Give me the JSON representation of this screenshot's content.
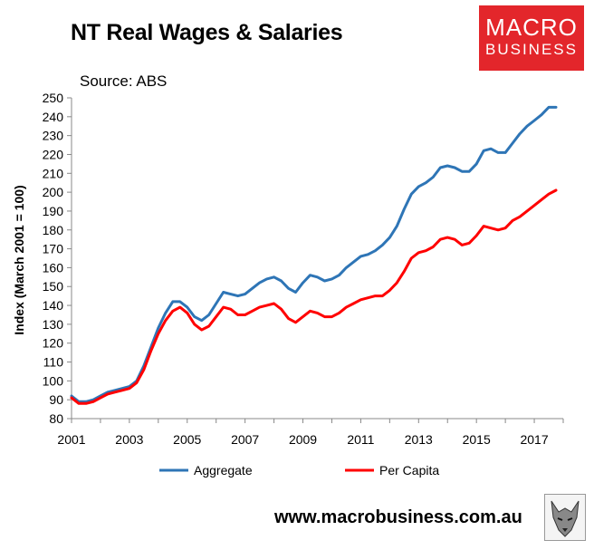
{
  "header": {
    "title": "NT Real Wages & Salaries",
    "source": "Source: ABS"
  },
  "logo": {
    "line1": "MACRO",
    "line2": "BUSINESS",
    "color": "#e3262b"
  },
  "footer": {
    "url": "www.macrobusiness.com.au"
  },
  "chart_data": {
    "type": "line",
    "title": "NT Real Wages & Salaries",
    "xlabel": "",
    "ylabel": "Index (March 2001 = 100)",
    "xlim": [
      2001,
      2018
    ],
    "ylim": [
      80,
      250
    ],
    "x_ticks": [
      2001,
      2003,
      2005,
      2007,
      2009,
      2011,
      2013,
      2015,
      2017
    ],
    "y_ticks": [
      80,
      90,
      100,
      110,
      120,
      130,
      140,
      150,
      160,
      170,
      180,
      190,
      200,
      210,
      220,
      230,
      240,
      250
    ],
    "grid": false,
    "legend_position": "bottom",
    "series": [
      {
        "name": "Aggregate",
        "color": "#2e75b6",
        "x": [
          2001.0,
          2001.25,
          2001.5,
          2001.75,
          2002.0,
          2002.25,
          2002.5,
          2002.75,
          2003.0,
          2003.25,
          2003.5,
          2003.75,
          2004.0,
          2004.25,
          2004.5,
          2004.75,
          2005.0,
          2005.25,
          2005.5,
          2005.75,
          2006.0,
          2006.25,
          2006.5,
          2006.75,
          2007.0,
          2007.25,
          2007.5,
          2007.75,
          2008.0,
          2008.25,
          2008.5,
          2008.75,
          2009.0,
          2009.25,
          2009.5,
          2009.75,
          2010.0,
          2010.25,
          2010.5,
          2010.75,
          2011.0,
          2011.25,
          2011.5,
          2011.75,
          2012.0,
          2012.25,
          2012.5,
          2012.75,
          2013.0,
          2013.25,
          2013.5,
          2013.75,
          2014.0,
          2014.25,
          2014.5,
          2014.75,
          2015.0,
          2015.25,
          2015.5,
          2015.75,
          2016.0,
          2016.25,
          2016.5,
          2016.75,
          2017.0,
          2017.25,
          2017.5,
          2017.75
        ],
        "values": [
          92,
          89,
          89,
          90,
          92,
          94,
          95,
          96,
          97,
          100,
          108,
          118,
          128,
          136,
          142,
          142,
          139,
          134,
          132,
          135,
          141,
          147,
          146,
          145,
          146,
          149,
          152,
          154,
          155,
          153,
          149,
          147,
          152,
          156,
          155,
          153,
          154,
          156,
          160,
          163,
          166,
          167,
          169,
          172,
          176,
          182,
          191,
          199,
          203,
          205,
          208,
          213,
          214,
          213,
          211,
          211,
          215,
          222,
          223,
          221,
          221,
          226,
          231,
          235,
          238,
          241,
          245,
          245
        ]
      },
      {
        "name": "Per Capita",
        "color": "#ff0000",
        "x": [
          2001.0,
          2001.25,
          2001.5,
          2001.75,
          2002.0,
          2002.25,
          2002.5,
          2002.75,
          2003.0,
          2003.25,
          2003.5,
          2003.75,
          2004.0,
          2004.25,
          2004.5,
          2004.75,
          2005.0,
          2005.25,
          2005.5,
          2005.75,
          2006.0,
          2006.25,
          2006.5,
          2006.75,
          2007.0,
          2007.25,
          2007.5,
          2007.75,
          2008.0,
          2008.25,
          2008.5,
          2008.75,
          2009.0,
          2009.25,
          2009.5,
          2009.75,
          2010.0,
          2010.25,
          2010.5,
          2010.75,
          2011.0,
          2011.25,
          2011.5,
          2011.75,
          2012.0,
          2012.25,
          2012.5,
          2012.75,
          2013.0,
          2013.25,
          2013.5,
          2013.75,
          2014.0,
          2014.25,
          2014.5,
          2014.75,
          2015.0,
          2015.25,
          2015.5,
          2015.75,
          2016.0,
          2016.25,
          2016.5,
          2016.75,
          2017.0,
          2017.25,
          2017.5,
          2017.75
        ],
        "values": [
          91,
          88,
          88,
          89,
          91,
          93,
          94,
          95,
          96,
          99,
          106,
          116,
          125,
          132,
          137,
          139,
          136,
          130,
          127,
          129,
          134,
          139,
          138,
          135,
          135,
          137,
          139,
          140,
          141,
          138,
          133,
          131,
          134,
          137,
          136,
          134,
          134,
          136,
          139,
          141,
          143,
          144,
          145,
          145,
          148,
          152,
          158,
          165,
          168,
          169,
          171,
          175,
          176,
          175,
          172,
          173,
          177,
          182,
          181,
          180,
          181,
          185,
          187,
          190,
          193,
          196,
          199,
          201
        ]
      }
    ]
  }
}
